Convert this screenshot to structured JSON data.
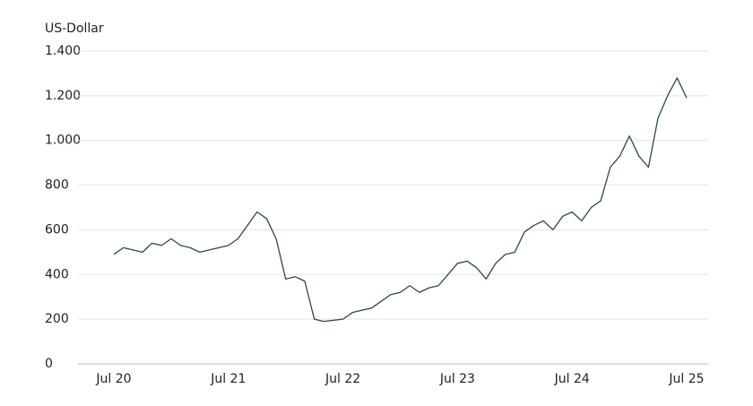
{
  "chart_data": {
    "type": "line",
    "y_label": "US-Dollar",
    "categories": [
      "Jul 20",
      null,
      null,
      null,
      null,
      null,
      null,
      null,
      null,
      null,
      null,
      null,
      "Jul 21",
      null,
      null,
      null,
      null,
      null,
      null,
      null,
      null,
      null,
      null,
      null,
      "Jul 22",
      null,
      null,
      null,
      null,
      null,
      null,
      null,
      null,
      null,
      null,
      null,
      "Jul 23",
      null,
      null,
      null,
      null,
      null,
      null,
      null,
      null,
      null,
      null,
      null,
      "Jul 24",
      null,
      null,
      null,
      null,
      null,
      null,
      null,
      null,
      null,
      null,
      null,
      "Jul 25"
    ],
    "values": [
      490,
      520,
      510,
      500,
      540,
      530,
      560,
      530,
      520,
      500,
      510,
      520,
      530,
      560,
      620,
      680,
      650,
      560,
      380,
      390,
      370,
      200,
      190,
      195,
      200,
      230,
      240,
      250,
      280,
      310,
      320,
      350,
      320,
      340,
      350,
      400,
      450,
      460,
      430,
      380,
      450,
      490,
      500,
      590,
      620,
      640,
      600,
      660,
      680,
      640,
      700,
      730,
      880,
      930,
      1020,
      930,
      880,
      1100,
      1200,
      1280,
      1190
    ],
    "color": "#2f4747",
    "ylim": [
      0,
      1400
    ],
    "yticks": [
      0,
      200,
      400,
      600,
      {
        "value": 800,
        "label": "800"
      },
      {
        "value": 1000,
        "label": "1.000"
      },
      {
        "value": 1200,
        "label": "1.200"
      },
      {
        "value": 1400,
        "label": "1.400"
      }
    ],
    "grid": true
  }
}
